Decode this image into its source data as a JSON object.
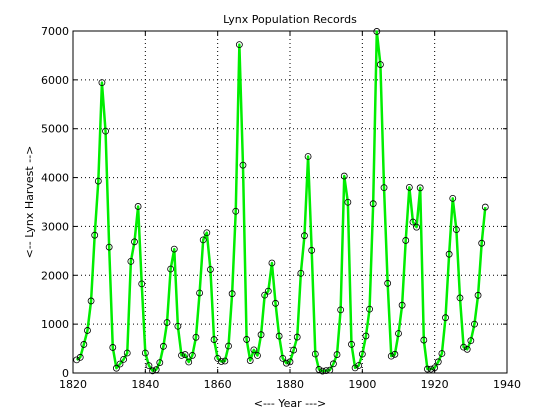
{
  "chart_data": {
    "type": "line",
    "title": "Lynx Population Records",
    "xlabel": "<--- Year --->",
    "ylabel": "<-- Lynx Harvest -->",
    "xlim": [
      1820,
      1940
    ],
    "ylim": [
      0,
      7000
    ],
    "xticks": [
      1820,
      1840,
      1860,
      1880,
      1900,
      1920,
      1940
    ],
    "yticks": [
      0,
      1000,
      2000,
      3000,
      4000,
      5000,
      6000,
      7000
    ],
    "grid": true,
    "line_color": "#00ee00",
    "marker": "open-circle",
    "series": [
      {
        "name": "",
        "x": [
          1821,
          1822,
          1823,
          1824,
          1825,
          1826,
          1827,
          1828,
          1829,
          1830,
          1831,
          1832,
          1833,
          1834,
          1835,
          1836,
          1837,
          1838,
          1839,
          1840,
          1841,
          1842,
          1843,
          1844,
          1845,
          1846,
          1847,
          1848,
          1849,
          1850,
          1851,
          1852,
          1853,
          1854,
          1855,
          1856,
          1857,
          1858,
          1859,
          1860,
          1861,
          1862,
          1863,
          1864,
          1865,
          1866,
          1867,
          1868,
          1869,
          1870,
          1871,
          1872,
          1873,
          1874,
          1875,
          1876,
          1877,
          1878,
          1879,
          1880,
          1881,
          1882,
          1883,
          1884,
          1885,
          1886,
          1887,
          1888,
          1889,
          1890,
          1891,
          1892,
          1893,
          1894,
          1895,
          1896,
          1897,
          1898,
          1899,
          1900,
          1901,
          1902,
          1903,
          1904,
          1905,
          1906,
          1907,
          1908,
          1909,
          1910,
          1911,
          1912,
          1913,
          1914,
          1915,
          1916,
          1917,
          1918,
          1919,
          1920,
          1921,
          1922,
          1923,
          1924,
          1925,
          1926,
          1927,
          1928,
          1929,
          1930,
          1931,
          1932,
          1933,
          1934
        ],
        "y": [
          269,
          321,
          585,
          871,
          1475,
          2821,
          3928,
          5943,
          4950,
          2577,
          523,
          98,
          184,
          279,
          409,
          2285,
          2685,
          3409,
          1824,
          409,
          151,
          45,
          68,
          213,
          546,
          1033,
          2129,
          2536,
          957,
          361,
          377,
          225,
          360,
          731,
          1638,
          2725,
          2871,
          2119,
          684,
          299,
          236,
          245,
          552,
          1623,
          3311,
          6721,
          4254,
          687,
          255,
          473,
          358,
          784,
          1594,
          1676,
          2251,
          1426,
          756,
          299,
          201,
          229,
          469,
          736,
          2042,
          2811,
          4431,
          2511,
          389,
          73,
          39,
          49,
          59,
          188,
          377,
          1292,
          4031,
          3495,
          587,
          105,
          153,
          387,
          758,
          1307,
          3465,
          6991,
          6313,
          3794,
          1836,
          345,
          382,
          808,
          1388,
          2713,
          3800,
          3091,
          2985,
          3790,
          674,
          81,
          80,
          108,
          229,
          399,
          1132,
          2432,
          3574,
          2935,
          1537,
          529,
          485,
          662,
          1000,
          1590,
          2657,
          3396
        ]
      }
    ]
  }
}
